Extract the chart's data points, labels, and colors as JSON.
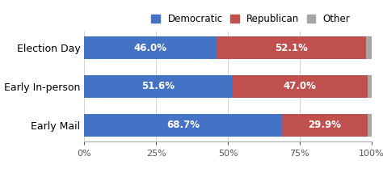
{
  "categories": [
    "Election Day",
    "Early In-person",
    "Early Mail"
  ],
  "democratic": [
    46.0,
    51.6,
    68.7
  ],
  "republican": [
    52.1,
    47.0,
    29.9
  ],
  "other": [
    1.9,
    1.4,
    1.4
  ],
  "dem_labels": [
    "46.0%",
    "51.6%",
    "68.7%"
  ],
  "rep_labels": [
    "52.1%",
    "47.0%",
    "29.9%"
  ],
  "dem_color": "#4472C4",
  "rep_color": "#C0504D",
  "other_color": "#A6A6A6",
  "label_color": "#FFFFFF",
  "legend_labels": [
    "Democratic",
    "Republican",
    "Other"
  ],
  "xticks": [
    0,
    25,
    50,
    75,
    100
  ],
  "xtick_labels": [
    "0%",
    "25%",
    "50%",
    "75%",
    "100%"
  ],
  "xlim": [
    0,
    100
  ],
  "bar_height": 0.6,
  "label_fontsize": 8.5,
  "tick_fontsize": 8,
  "legend_fontsize": 8.5,
  "ytick_fontsize": 9,
  "figsize": [
    4.74,
    2.14
  ],
  "dpi": 100
}
